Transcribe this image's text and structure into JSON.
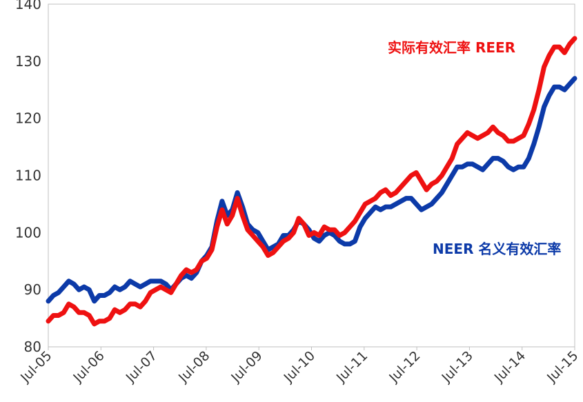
{
  "chart_data": {
    "type": "line",
    "title": "",
    "xlabel": "",
    "ylabel": "",
    "ylim": [
      80,
      140
    ],
    "yticks": [
      "80",
      "90",
      "100",
      "110",
      "120",
      "130",
      "140"
    ],
    "xticks": [
      "Jul-05",
      "Jul-06",
      "Jul-07",
      "Jul-08",
      "Jul-09",
      "Jul-10",
      "Jul-11",
      "Jul-12",
      "Jul-13",
      "Jul-14",
      "Jul-15"
    ],
    "grid": false,
    "series": [
      {
        "name": "实际有效汇率 REER",
        "color": "#ee1111",
        "points": [
          [
            0,
            84.5
          ],
          [
            1,
            85.5
          ],
          [
            2,
            85.5
          ],
          [
            3,
            86
          ],
          [
            4,
            87.5
          ],
          [
            5,
            87
          ],
          [
            6,
            86
          ],
          [
            7,
            86
          ],
          [
            8,
            85.5
          ],
          [
            9,
            84
          ],
          [
            10,
            84.5
          ],
          [
            11,
            84.5
          ],
          [
            12,
            85
          ],
          [
            13,
            86.5
          ],
          [
            14,
            86
          ],
          [
            15,
            86.5
          ],
          [
            16,
            87.5
          ],
          [
            17,
            87.5
          ],
          [
            18,
            87
          ],
          [
            19,
            88
          ],
          [
            20,
            89.5
          ],
          [
            21,
            90
          ],
          [
            22,
            90.5
          ],
          [
            23,
            90
          ],
          [
            24,
            89.5
          ],
          [
            25,
            91
          ],
          [
            26,
            92.5
          ],
          [
            27,
            93.5
          ],
          [
            28,
            93
          ],
          [
            29,
            93.5
          ],
          [
            30,
            95
          ],
          [
            31,
            95.5
          ],
          [
            32,
            97
          ],
          [
            33,
            101
          ],
          [
            34,
            104
          ],
          [
            35,
            101.5
          ],
          [
            36,
            103
          ],
          [
            37,
            106
          ],
          [
            38,
            103
          ],
          [
            39,
            100.5
          ],
          [
            40,
            99.5
          ],
          [
            41,
            98.5
          ],
          [
            42,
            97.5
          ],
          [
            43,
            96
          ],
          [
            44,
            96.5
          ],
          [
            45,
            97.5
          ],
          [
            46,
            98.5
          ],
          [
            47,
            99
          ],
          [
            48,
            100
          ],
          [
            49,
            102.5
          ],
          [
            50,
            101.5
          ],
          [
            51,
            99.5
          ],
          [
            52,
            100
          ],
          [
            53,
            99.5
          ],
          [
            54,
            101
          ],
          [
            55,
            100.5
          ],
          [
            56,
            100.5
          ],
          [
            57,
            99.5
          ],
          [
            58,
            100
          ],
          [
            59,
            101
          ],
          [
            60,
            102
          ],
          [
            61,
            103.5
          ],
          [
            62,
            105
          ],
          [
            63,
            105.5
          ],
          [
            64,
            106
          ],
          [
            65,
            107
          ],
          [
            66,
            107.5
          ],
          [
            67,
            106.5
          ],
          [
            68,
            107
          ],
          [
            69,
            108
          ],
          [
            70,
            109
          ],
          [
            71,
            110
          ],
          [
            72,
            110.5
          ],
          [
            73,
            109
          ],
          [
            74,
            107.5
          ],
          [
            75,
            108.5
          ],
          [
            76,
            109
          ],
          [
            77,
            110
          ],
          [
            78,
            111.5
          ],
          [
            79,
            113
          ],
          [
            80,
            115.5
          ],
          [
            81,
            116.5
          ],
          [
            82,
            117.5
          ],
          [
            83,
            117
          ],
          [
            84,
            116.5
          ],
          [
            85,
            117
          ],
          [
            86,
            117.5
          ],
          [
            87,
            118.5
          ],
          [
            88,
            117.5
          ],
          [
            89,
            117
          ],
          [
            90,
            116
          ],
          [
            91,
            116
          ],
          [
            92,
            116.5
          ],
          [
            93,
            117
          ],
          [
            94,
            119
          ],
          [
            95,
            121.5
          ],
          [
            96,
            125
          ],
          [
            97,
            129
          ],
          [
            98,
            131
          ],
          [
            99,
            132.5
          ],
          [
            100,
            132.5
          ],
          [
            101,
            131.5
          ],
          [
            102,
            133
          ],
          [
            103,
            134
          ]
        ]
      },
      {
        "name": "NEER 名义有效汇率",
        "color": "#0c3aa8",
        "points": [
          [
            0,
            88
          ],
          [
            1,
            89
          ],
          [
            2,
            89.5
          ],
          [
            3,
            90.5
          ],
          [
            4,
            91.5
          ],
          [
            5,
            91
          ],
          [
            6,
            90
          ],
          [
            7,
            90.5
          ],
          [
            8,
            90
          ],
          [
            9,
            88
          ],
          [
            10,
            89
          ],
          [
            11,
            89
          ],
          [
            12,
            89.5
          ],
          [
            13,
            90.5
          ],
          [
            14,
            90
          ],
          [
            15,
            90.5
          ],
          [
            16,
            91.5
          ],
          [
            17,
            91
          ],
          [
            18,
            90.5
          ],
          [
            19,
            91
          ],
          [
            20,
            91.5
          ],
          [
            21,
            91.5
          ],
          [
            22,
            91.5
          ],
          [
            23,
            91
          ],
          [
            24,
            90
          ],
          [
            25,
            91
          ],
          [
            26,
            92
          ],
          [
            27,
            92.5
          ],
          [
            28,
            92
          ],
          [
            29,
            93
          ],
          [
            30,
            95
          ],
          [
            31,
            96
          ],
          [
            32,
            97.5
          ],
          [
            33,
            102
          ],
          [
            34,
            105.5
          ],
          [
            35,
            103
          ],
          [
            36,
            104
          ],
          [
            37,
            107
          ],
          [
            38,
            104.5
          ],
          [
            39,
            101.5
          ],
          [
            40,
            100.5
          ],
          [
            41,
            100
          ],
          [
            42,
            98.5
          ],
          [
            43,
            97
          ],
          [
            44,
            97.5
          ],
          [
            45,
            98
          ],
          [
            46,
            99.5
          ],
          [
            47,
            99.5
          ],
          [
            48,
            100.5
          ],
          [
            49,
            102
          ],
          [
            50,
            101.5
          ],
          [
            51,
            100.5
          ],
          [
            52,
            99
          ],
          [
            53,
            98.5
          ],
          [
            54,
            99.5
          ],
          [
            55,
            100
          ],
          [
            56,
            99.5
          ],
          [
            57,
            98.5
          ],
          [
            58,
            98
          ],
          [
            59,
            98
          ],
          [
            60,
            98.5
          ],
          [
            61,
            101
          ],
          [
            62,
            102.5
          ],
          [
            63,
            103.5
          ],
          [
            64,
            104.5
          ],
          [
            65,
            104
          ],
          [
            66,
            104.5
          ],
          [
            67,
            104.5
          ],
          [
            68,
            105
          ],
          [
            69,
            105.5
          ],
          [
            70,
            106
          ],
          [
            71,
            106
          ],
          [
            72,
            105
          ],
          [
            73,
            104
          ],
          [
            74,
            104.5
          ],
          [
            75,
            105
          ],
          [
            76,
            106
          ],
          [
            77,
            107
          ],
          [
            78,
            108.5
          ],
          [
            79,
            110
          ],
          [
            80,
            111.5
          ],
          [
            81,
            111.5
          ],
          [
            82,
            112
          ],
          [
            83,
            112
          ],
          [
            84,
            111.5
          ],
          [
            85,
            111
          ],
          [
            86,
            112
          ],
          [
            87,
            113
          ],
          [
            88,
            113
          ],
          [
            89,
            112.5
          ],
          [
            90,
            111.5
          ],
          [
            91,
            111
          ],
          [
            92,
            111.5
          ],
          [
            93,
            111.5
          ],
          [
            94,
            113
          ],
          [
            95,
            115.5
          ],
          [
            96,
            118.5
          ],
          [
            97,
            122
          ],
          [
            98,
            124
          ],
          [
            99,
            125.5
          ],
          [
            100,
            125.5
          ],
          [
            101,
            125
          ],
          [
            102,
            126
          ],
          [
            103,
            127
          ]
        ]
      }
    ],
    "annotations": [
      {
        "text": "实际有效汇率 REER",
        "color": "#ee1111"
      },
      {
        "text": "NEER 名义有效汇率",
        "color": "#0c3aa8"
      }
    ]
  }
}
